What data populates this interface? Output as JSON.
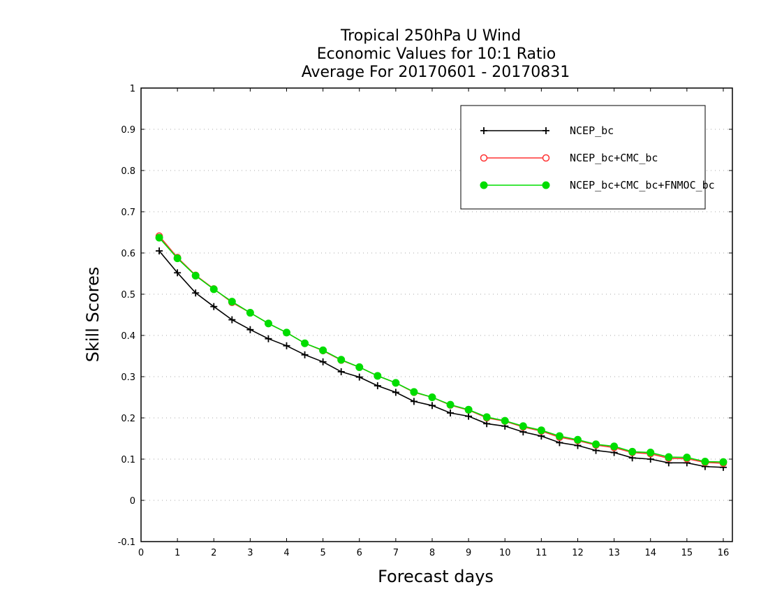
{
  "chart_data": {
    "type": "line",
    "title": [
      "Tropical 250hPa U Wind",
      "Economic Values for 10:1 Ratio",
      "Average For 20170601 - 20170831"
    ],
    "xlabel": "Forecast days",
    "ylabel": "Skill Scores",
    "xlim": [
      0,
      16.25
    ],
    "ylim": [
      -0.1,
      1
    ],
    "xticks": [
      0,
      1,
      2,
      3,
      4,
      5,
      6,
      7,
      8,
      9,
      10,
      11,
      12,
      13,
      14,
      15,
      16
    ],
    "yticks": [
      -0.1,
      0,
      0.1,
      0.2,
      0.3,
      0.4,
      0.5,
      0.6,
      0.7,
      0.8,
      0.9,
      1
    ],
    "ytick_labels": [
      "-0.1",
      "0",
      "0.1",
      "0.2",
      "0.3",
      "0.4",
      "0.5",
      "0.6",
      "0.7",
      "0.8",
      "0.9",
      "1"
    ],
    "grid": "horizontal dotted",
    "legend_position": "top-right",
    "x": [
      0.5,
      1,
      1.5,
      2,
      2.5,
      3,
      3.5,
      4,
      4.5,
      5,
      5.5,
      6,
      6.5,
      7,
      7.5,
      8,
      8.5,
      9,
      9.5,
      10,
      10.5,
      11,
      11.5,
      12,
      12.5,
      13,
      13.5,
      14,
      14.5,
      15,
      15.5,
      16
    ],
    "series": [
      {
        "name": "NCEP_bc",
        "color": "#000000",
        "marker": "plus",
        "values": [
          0.605,
          0.552,
          0.503,
          0.47,
          0.438,
          0.414,
          0.392,
          0.375,
          0.353,
          0.336,
          0.312,
          0.299,
          0.278,
          0.262,
          0.24,
          0.23,
          0.212,
          0.204,
          0.186,
          0.18,
          0.166,
          0.156,
          0.14,
          0.133,
          0.121,
          0.116,
          0.103,
          0.1,
          0.091,
          0.091,
          0.082,
          0.08
        ]
      },
      {
        "name": "NCEP_bc+CMC_bc",
        "color": "#ff3333",
        "marker": "open-circle",
        "values": [
          0.641,
          0.589,
          0.546,
          0.513,
          0.48,
          0.455,
          0.429,
          0.407,
          0.381,
          0.363,
          0.34,
          0.323,
          0.302,
          0.285,
          0.262,
          0.25,
          0.231,
          0.219,
          0.2,
          0.192,
          0.178,
          0.168,
          0.153,
          0.145,
          0.134,
          0.128,
          0.116,
          0.113,
          0.102,
          0.101,
          0.092,
          0.09
        ]
      },
      {
        "name": "NCEP_bc+CMC_bc+FNMOC_bc",
        "color": "#00dd00",
        "marker": "filled-circle",
        "values": [
          0.637,
          0.587,
          0.545,
          0.512,
          0.482,
          0.455,
          0.429,
          0.407,
          0.381,
          0.364,
          0.341,
          0.323,
          0.302,
          0.285,
          0.263,
          0.25,
          0.232,
          0.22,
          0.202,
          0.193,
          0.18,
          0.17,
          0.156,
          0.147,
          0.136,
          0.131,
          0.118,
          0.116,
          0.105,
          0.104,
          0.094,
          0.093
        ]
      }
    ]
  }
}
